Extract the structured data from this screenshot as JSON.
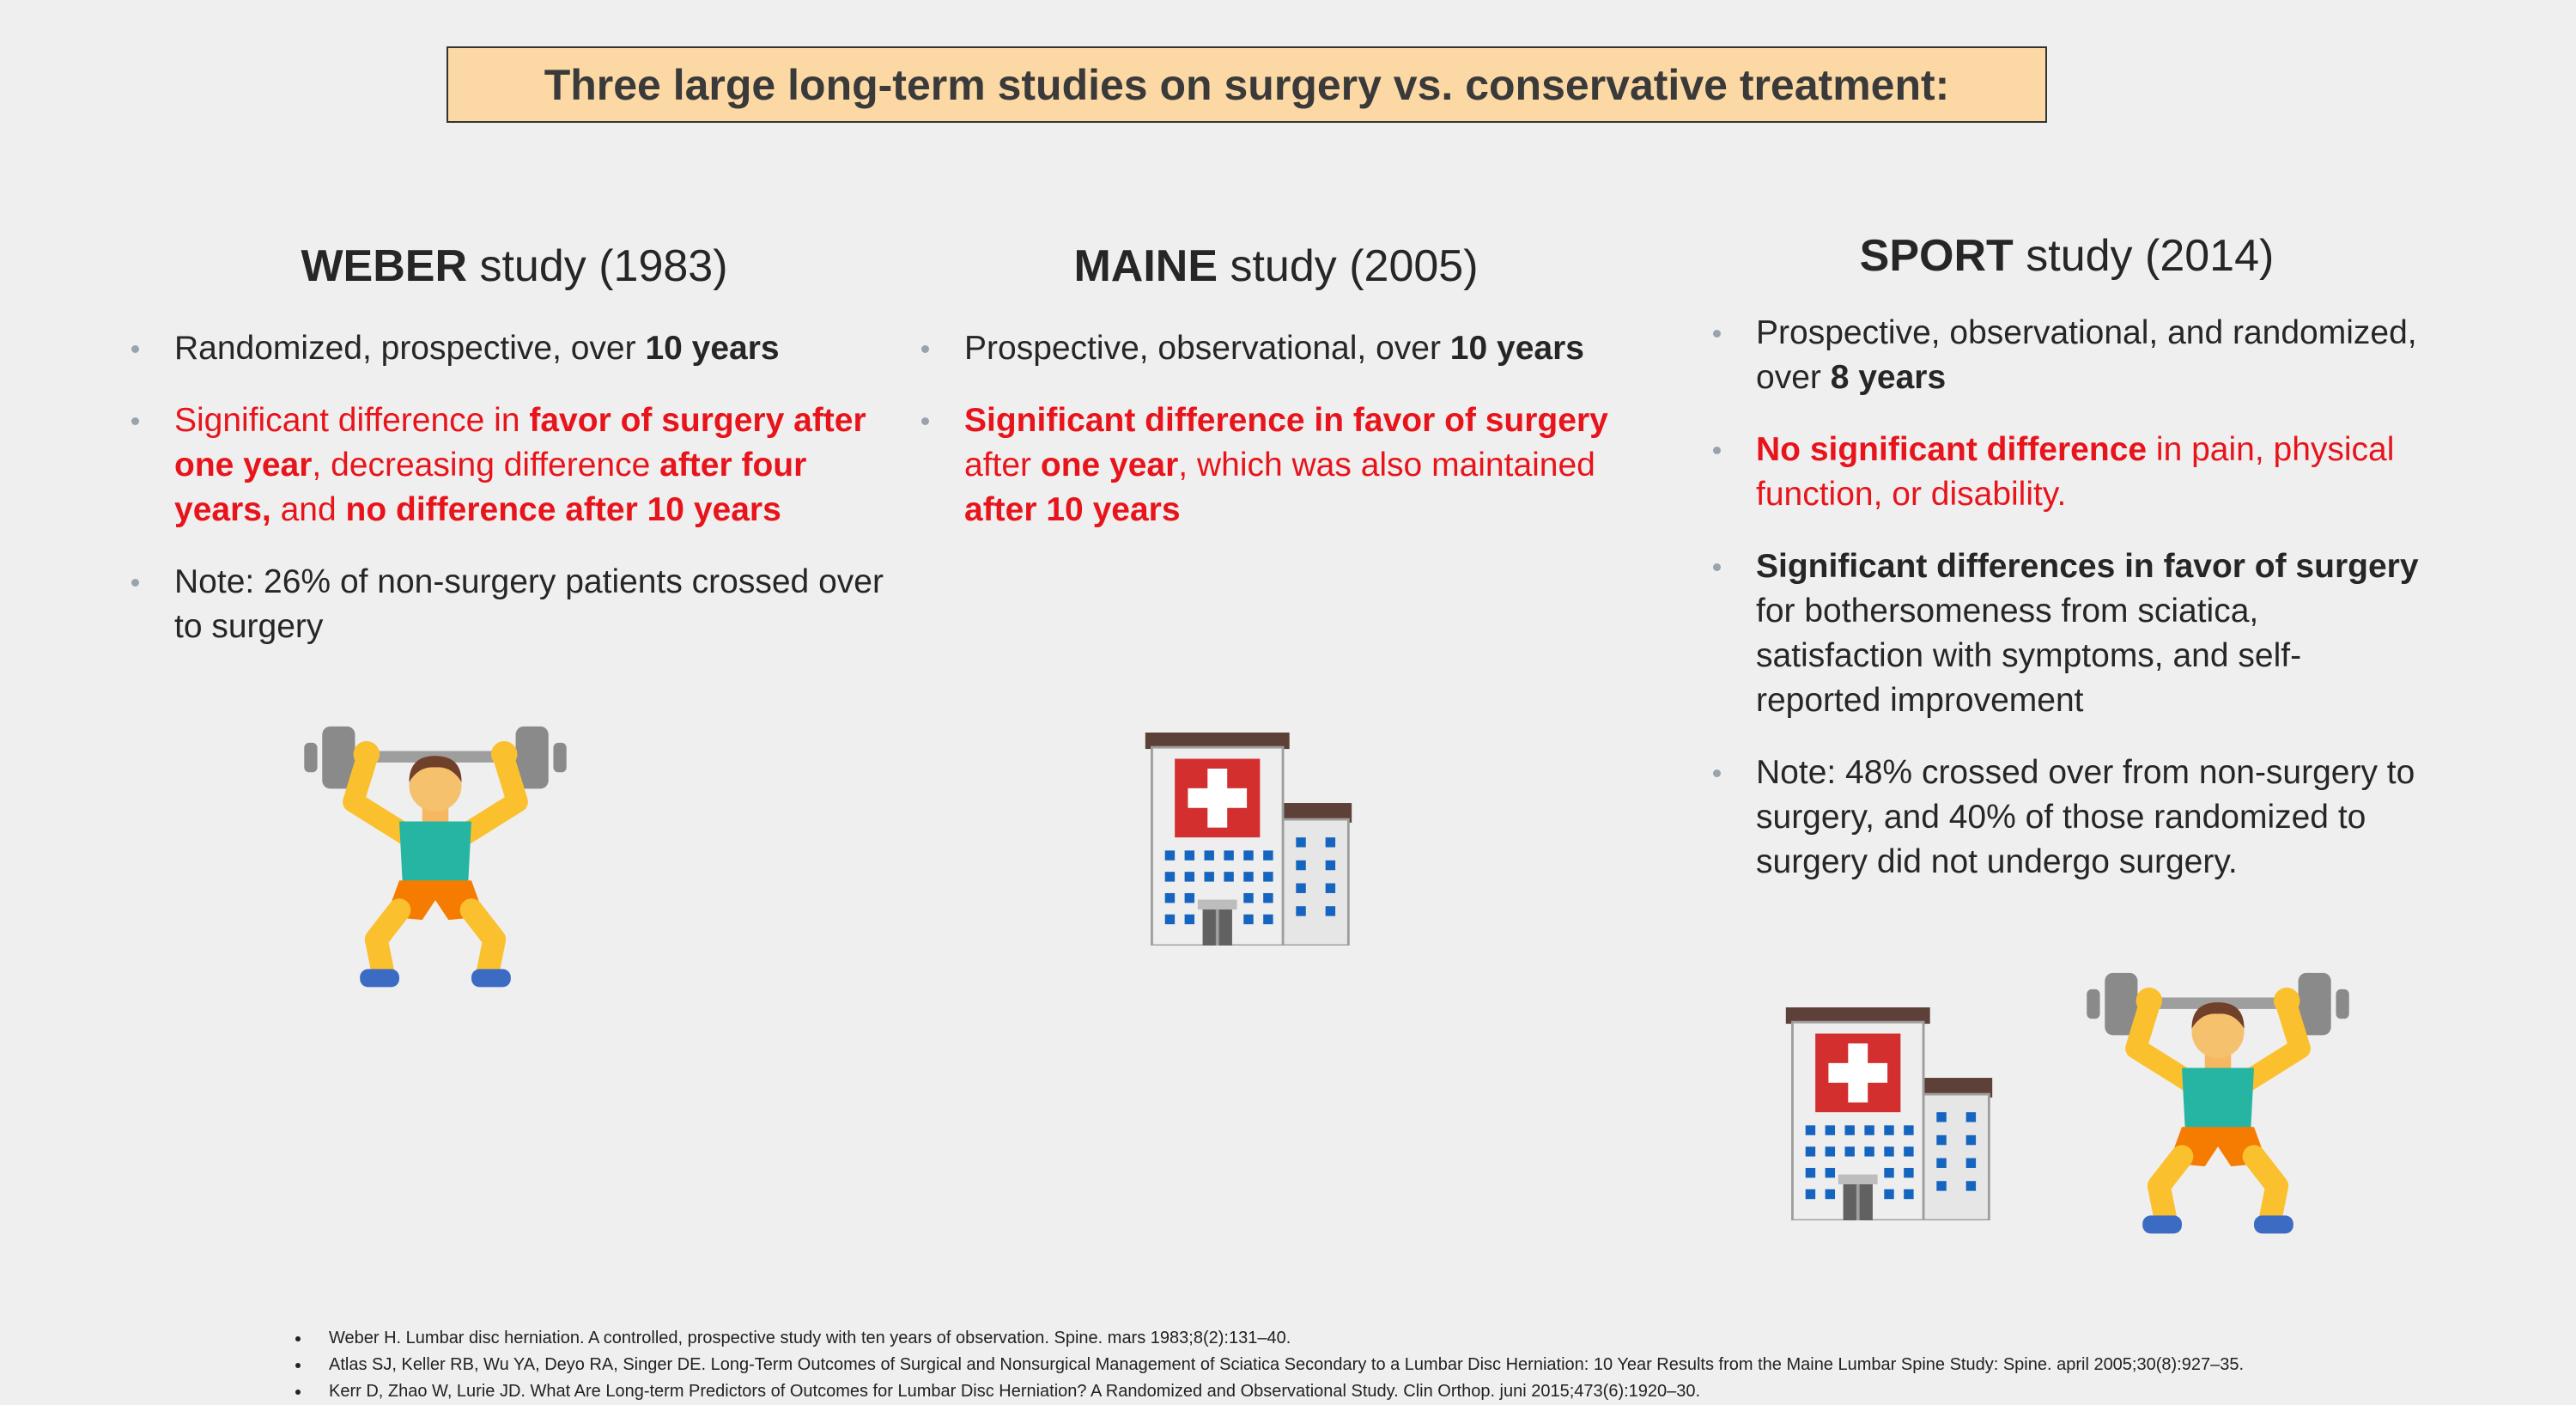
{
  "title": "Three large long-term studies on surgery vs. conservative treatment:",
  "columns": [
    {
      "heading": [
        "WEBER",
        "study (1983)"
      ],
      "bullets": [
        [
          "Randomized, prospective, over ",
          "10 years"
        ],
        [
          "Significant difference in ",
          "favor of surgery after one year",
          ", decreasing difference ",
          "after four years,",
          " and ",
          "no difference after 10 years"
        ],
        [
          "Note: 26% of non-surgery patients crossed over to surgery"
        ]
      ]
    },
    {
      "heading": [
        "MAINE",
        "study (2005)"
      ],
      "bullets": [
        [
          "Prospective, observational, over ",
          "10 years"
        ],
        [
          "Significant difference in favor of surgery",
          " after ",
          "one year",
          ", which was also maintained ",
          "after 10 years"
        ]
      ]
    },
    {
      "heading": [
        "SPORT",
        "study (2014)"
      ],
      "bullets": [
        [
          "Prospective, observational, and randomized, over ",
          "8 years"
        ],
        [
          "No significant difference",
          " in pain, physical function, or disability."
        ],
        [
          "Significant differences in favor of surgery",
          " for bothersomeness from sciatica, satisfaction with symptoms, and self-reported improvement"
        ],
        [
          "Note: 48% crossed over from non-surgery to surgery, and 40% of those randomized to surgery did not undergo surgery."
        ]
      ]
    }
  ],
  "references": [
    "Weber H. Lumbar disc herniation. A controlled, prospective study with ten years of observation. Spine. mars 1983;8(2):131–40.",
    "Atlas SJ, Keller RB, Wu YA, Deyo RA, Singer DE. Long-Term Outcomes of Surgical and Nonsurgical Management of Sciatica Secondary to a Lumbar Disc Herniation: 10 Year Results from the Maine Lumbar Spine Study: Spine. april 2005;30(8):927–35.",
    "Kerr D, Zhao W, Lurie JD. What Are Long-term Predictors of Outcomes for Lumbar Disc Herniation? A Randomized and Observational Study. Clin Orthop. juni 2015;473(6):1920–30."
  ]
}
